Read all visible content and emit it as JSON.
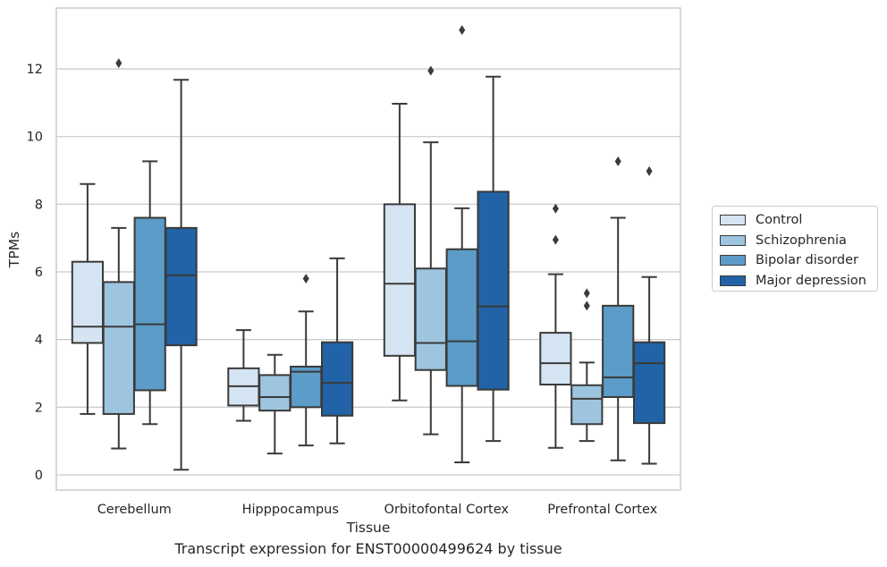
{
  "caption": "Transcript expression for ENST00000499624 by tissue",
  "chart_data": {
    "type": "boxplot",
    "title": "",
    "xlabel": "Tissue",
    "ylabel": "TPMs",
    "ylim": [
      -0.45,
      13.8
    ],
    "yticks": [
      0,
      2,
      4,
      6,
      8,
      10,
      12
    ],
    "grid": true,
    "legend_position": "right",
    "categories": [
      "Cerebellum",
      "Hipppocampus",
      "Orbitofontal Cortex",
      "Prefrontal Cortex"
    ],
    "series": [
      {
        "name": "Control",
        "color": "#d4e4f2",
        "boxes": [
          {
            "whislo": 1.8,
            "q1": 3.9,
            "med": 4.38,
            "q3": 6.3,
            "whishi": 8.6,
            "fliers": []
          },
          {
            "whislo": 1.6,
            "q1": 2.05,
            "med": 2.62,
            "q3": 3.15,
            "whishi": 4.28,
            "fliers": []
          },
          {
            "whislo": 2.2,
            "q1": 3.52,
            "med": 5.65,
            "q3": 8.0,
            "whishi": 10.97,
            "fliers": []
          },
          {
            "whislo": 0.8,
            "q1": 2.67,
            "med": 3.3,
            "q3": 4.2,
            "whishi": 5.93,
            "fliers": [
              6.95,
              7.87
            ]
          }
        ]
      },
      {
        "name": "Schizophrenia",
        "color": "#9ec5e0",
        "boxes": [
          {
            "whislo": 0.78,
            "q1": 1.8,
            "med": 4.38,
            "q3": 5.7,
            "whishi": 7.3,
            "fliers": [
              12.17
            ]
          },
          {
            "whislo": 0.63,
            "q1": 1.9,
            "med": 2.3,
            "q3": 2.95,
            "whishi": 3.55,
            "fliers": []
          },
          {
            "whislo": 1.2,
            "q1": 3.1,
            "med": 3.9,
            "q3": 6.1,
            "whishi": 9.83,
            "fliers": [
              11.95
            ]
          },
          {
            "whislo": 1.0,
            "q1": 1.5,
            "med": 2.25,
            "q3": 2.65,
            "whishi": 3.32,
            "fliers": [
              5.0,
              5.37
            ]
          }
        ]
      },
      {
        "name": "Bipolar disorder",
        "color": "#5b9cc8",
        "boxes": [
          {
            "whislo": 1.5,
            "q1": 2.5,
            "med": 4.45,
            "q3": 7.6,
            "whishi": 9.27,
            "fliers": []
          },
          {
            "whislo": 0.87,
            "q1": 2.0,
            "med": 3.05,
            "q3": 3.2,
            "whishi": 4.83,
            "fliers": [
              5.8
            ]
          },
          {
            "whislo": 0.37,
            "q1": 2.63,
            "med": 3.95,
            "q3": 6.67,
            "whishi": 7.88,
            "fliers": [
              13.15
            ]
          },
          {
            "whislo": 0.43,
            "q1": 2.3,
            "med": 2.88,
            "q3": 5.0,
            "whishi": 7.6,
            "fliers": [
              9.27
            ]
          }
        ]
      },
      {
        "name": "Major depression",
        "color": "#2163a6",
        "boxes": [
          {
            "whislo": 0.15,
            "q1": 3.83,
            "med": 5.9,
            "q3": 7.3,
            "whishi": 11.68,
            "fliers": []
          },
          {
            "whislo": 0.93,
            "q1": 1.75,
            "med": 2.72,
            "q3": 3.92,
            "whishi": 6.4,
            "fliers": []
          },
          {
            "whislo": 1.0,
            "q1": 2.52,
            "med": 4.98,
            "q3": 8.37,
            "whishi": 11.77,
            "fliers": []
          },
          {
            "whislo": 0.33,
            "q1": 1.53,
            "med": 3.3,
            "q3": 3.92,
            "whishi": 5.85,
            "fliers": [
              8.98
            ]
          }
        ]
      }
    ]
  }
}
